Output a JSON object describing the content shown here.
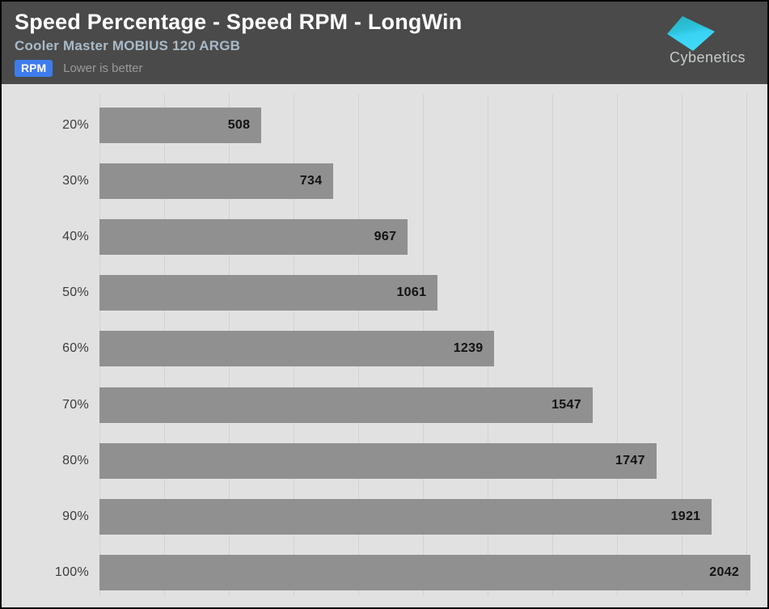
{
  "header": {
    "title": "Speed Percentage - Speed RPM - LongWin",
    "subtitle": "Cooler Master MOBIUS 120 ARGB",
    "badge": "RPM",
    "note": "Lower is better",
    "logo_text": "Cybenetics"
  },
  "colors": {
    "header_bg": "#4a4a4a",
    "subtitle": "#a9bac7",
    "badge_bg": "#3e7cee",
    "chart_bg": "#e1e1e1",
    "grid": "#d2d2d2",
    "bar": "#909090",
    "value_text": "#121212",
    "category_text": "#3b3b3b",
    "logo_gradient_top": "#23b2c0",
    "logo_gradient_bottom": "#41d9f9"
  },
  "chart_data": {
    "type": "bar",
    "orientation": "horizontal",
    "title": "Speed Percentage - Speed RPM - LongWin",
    "subtitle": "Cooler Master MOBIUS 120 ARGB",
    "unit": "RPM",
    "note": "Lower is better",
    "categories": [
      "20%",
      "30%",
      "40%",
      "50%",
      "60%",
      "70%",
      "80%",
      "90%",
      "100%"
    ],
    "values": [
      508,
      734,
      967,
      1061,
      1239,
      1547,
      1747,
      1921,
      2042
    ],
    "xlabel": "Speed RPM",
    "ylabel": "Speed Percentage",
    "xlim": [
      0,
      2095
    ],
    "grid": "vertical",
    "grid_interval_rpm": 200,
    "legend_position": "none",
    "value_labels": "inside-end"
  }
}
